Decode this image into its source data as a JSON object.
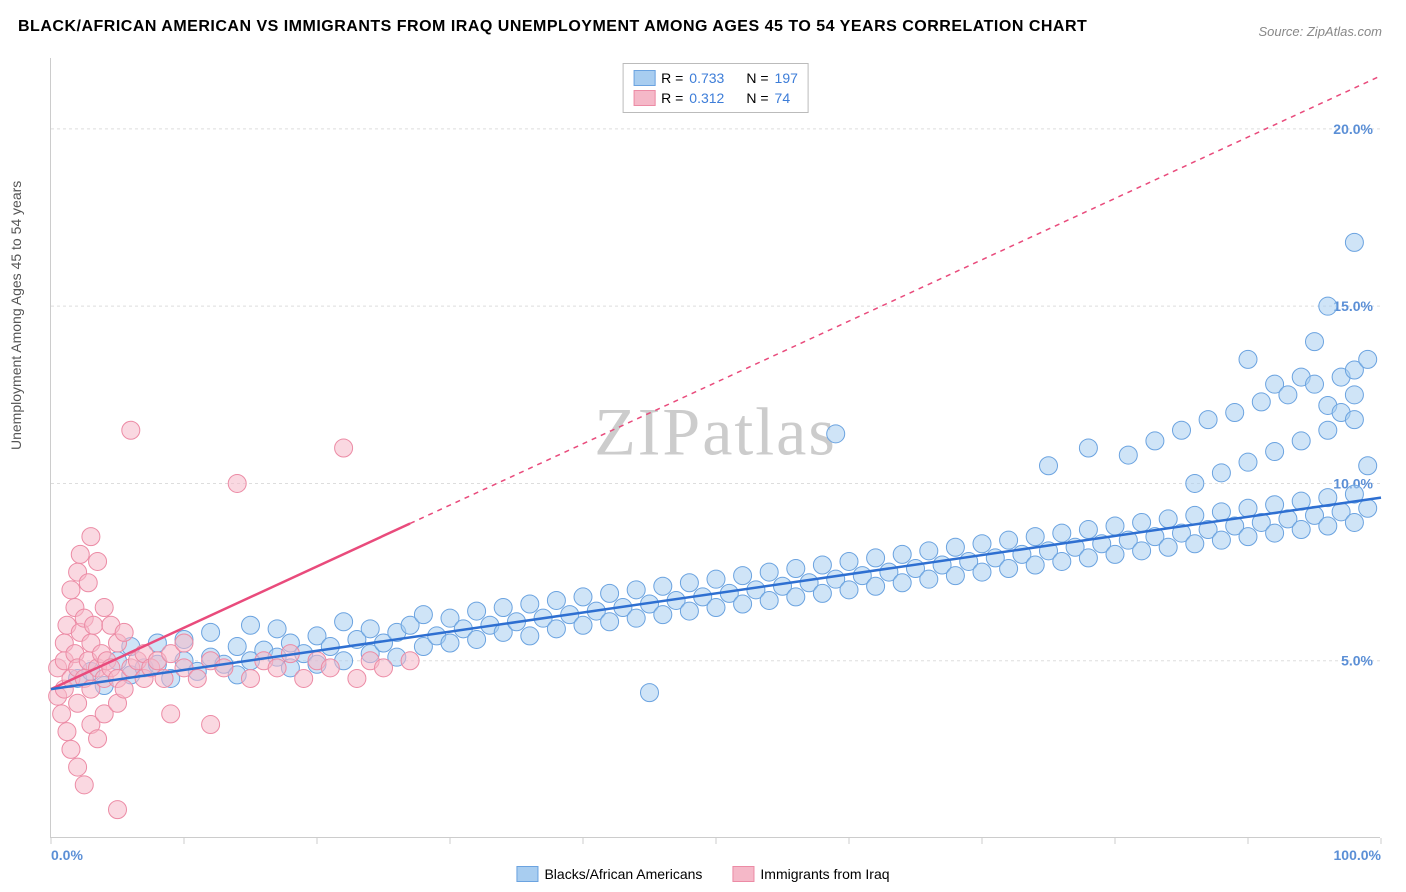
{
  "title": "BLACK/AFRICAN AMERICAN VS IMMIGRANTS FROM IRAQ UNEMPLOYMENT AMONG AGES 45 TO 54 YEARS CORRELATION CHART",
  "source": "Source: ZipAtlas.com",
  "watermark": "ZIPatlas",
  "y_axis_label": "Unemployment Among Ages 45 to 54 years",
  "chart": {
    "type": "scatter",
    "background_color": "#ffffff",
    "grid_color": "#dddddd",
    "axis_color": "#cccccc",
    "xlim": [
      0,
      100
    ],
    "ylim": [
      0,
      22
    ],
    "x_ticks": [
      0,
      10,
      20,
      30,
      40,
      50,
      60,
      70,
      80,
      90,
      100
    ],
    "x_tick_labels_shown": {
      "0": "0.0%",
      "100": "100.0%"
    },
    "y_ticks": [
      5,
      10,
      15,
      20
    ],
    "y_tick_labels": {
      "5": "5.0%",
      "10": "10.0%",
      "15": "15.0%",
      "20": "20.0%"
    },
    "x_label_color": "#5b8fd6",
    "y_label_color": "#5b8fd6",
    "label_fontsize": 14,
    "title_fontsize": 16
  },
  "series_a": {
    "name": "Blacks/African Americans",
    "fill_color": "#a8cdf0",
    "stroke_color": "#6ba3e0",
    "line_color": "#2e6fd1",
    "marker_radius": 9,
    "marker_opacity": 0.55,
    "R": "0.733",
    "N": "197",
    "trend": {
      "x1": 0,
      "y1": 4.2,
      "x2": 100,
      "y2": 9.6,
      "solid_until_x": 100
    },
    "points": [
      [
        2,
        4.5
      ],
      [
        3,
        4.7
      ],
      [
        4,
        4.3
      ],
      [
        5,
        5.0
      ],
      [
        6,
        4.6
      ],
      [
        6,
        5.4
      ],
      [
        7,
        4.8
      ],
      [
        8,
        4.9
      ],
      [
        8,
        5.5
      ],
      [
        9,
        4.5
      ],
      [
        10,
        5.0
      ],
      [
        10,
        5.6
      ],
      [
        11,
        4.7
      ],
      [
        12,
        5.1
      ],
      [
        12,
        5.8
      ],
      [
        13,
        4.9
      ],
      [
        14,
        5.4
      ],
      [
        14,
        4.6
      ],
      [
        15,
        5.0
      ],
      [
        15,
        6.0
      ],
      [
        16,
        5.3
      ],
      [
        17,
        5.1
      ],
      [
        17,
        5.9
      ],
      [
        18,
        5.5
      ],
      [
        18,
        4.8
      ],
      [
        19,
        5.2
      ],
      [
        20,
        5.7
      ],
      [
        20,
        4.9
      ],
      [
        21,
        5.4
      ],
      [
        22,
        5.0
      ],
      [
        22,
        6.1
      ],
      [
        23,
        5.6
      ],
      [
        24,
        5.2
      ],
      [
        24,
        5.9
      ],
      [
        25,
        5.5
      ],
      [
        26,
        5.8
      ],
      [
        26,
        5.1
      ],
      [
        27,
        6.0
      ],
      [
        28,
        5.4
      ],
      [
        28,
        6.3
      ],
      [
        29,
        5.7
      ],
      [
        30,
        5.5
      ],
      [
        30,
        6.2
      ],
      [
        31,
        5.9
      ],
      [
        32,
        5.6
      ],
      [
        32,
        6.4
      ],
      [
        33,
        6.0
      ],
      [
        34,
        5.8
      ],
      [
        34,
        6.5
      ],
      [
        35,
        6.1
      ],
      [
        36,
        5.7
      ],
      [
        36,
        6.6
      ],
      [
        37,
        6.2
      ],
      [
        38,
        5.9
      ],
      [
        38,
        6.7
      ],
      [
        39,
        6.3
      ],
      [
        40,
        6.0
      ],
      [
        40,
        6.8
      ],
      [
        41,
        6.4
      ],
      [
        42,
        6.1
      ],
      [
        42,
        6.9
      ],
      [
        43,
        6.5
      ],
      [
        44,
        6.2
      ],
      [
        44,
        7.0
      ],
      [
        45,
        6.6
      ],
      [
        45,
        4.1
      ],
      [
        46,
        6.3
      ],
      [
        46,
        7.1
      ],
      [
        47,
        6.7
      ],
      [
        48,
        6.4
      ],
      [
        48,
        7.2
      ],
      [
        49,
        6.8
      ],
      [
        50,
        6.5
      ],
      [
        50,
        7.3
      ],
      [
        51,
        6.9
      ],
      [
        52,
        6.6
      ],
      [
        52,
        7.4
      ],
      [
        53,
        7.0
      ],
      [
        54,
        6.7
      ],
      [
        54,
        7.5
      ],
      [
        55,
        7.1
      ],
      [
        56,
        6.8
      ],
      [
        56,
        7.6
      ],
      [
        57,
        7.2
      ],
      [
        58,
        6.9
      ],
      [
        58,
        7.7
      ],
      [
        59,
        7.3
      ],
      [
        59,
        11.4
      ],
      [
        60,
        7.0
      ],
      [
        60,
        7.8
      ],
      [
        61,
        7.4
      ],
      [
        62,
        7.1
      ],
      [
        62,
        7.9
      ],
      [
        63,
        7.5
      ],
      [
        64,
        7.2
      ],
      [
        64,
        8.0
      ],
      [
        65,
        7.6
      ],
      [
        66,
        7.3
      ],
      [
        66,
        8.1
      ],
      [
        67,
        7.7
      ],
      [
        68,
        7.4
      ],
      [
        68,
        8.2
      ],
      [
        69,
        7.8
      ],
      [
        70,
        7.5
      ],
      [
        70,
        8.3
      ],
      [
        71,
        7.9
      ],
      [
        72,
        7.6
      ],
      [
        72,
        8.4
      ],
      [
        73,
        8.0
      ],
      [
        74,
        7.7
      ],
      [
        74,
        8.5
      ],
      [
        75,
        8.1
      ],
      [
        75,
        10.5
      ],
      [
        76,
        7.8
      ],
      [
        76,
        8.6
      ],
      [
        77,
        8.2
      ],
      [
        78,
        7.9
      ],
      [
        78,
        8.7
      ],
      [
        78,
        11.0
      ],
      [
        79,
        8.3
      ],
      [
        80,
        8.0
      ],
      [
        80,
        8.8
      ],
      [
        81,
        8.4
      ],
      [
        81,
        10.8
      ],
      [
        82,
        8.1
      ],
      [
        82,
        8.9
      ],
      [
        83,
        8.5
      ],
      [
        83,
        11.2
      ],
      [
        84,
        8.2
      ],
      [
        84,
        9.0
      ],
      [
        85,
        8.6
      ],
      [
        85,
        11.5
      ],
      [
        86,
        8.3
      ],
      [
        86,
        9.1
      ],
      [
        86,
        10.0
      ],
      [
        87,
        8.7
      ],
      [
        87,
        11.8
      ],
      [
        88,
        8.4
      ],
      [
        88,
        9.2
      ],
      [
        88,
        10.3
      ],
      [
        89,
        8.8
      ],
      [
        89,
        12.0
      ],
      [
        90,
        8.5
      ],
      [
        90,
        9.3
      ],
      [
        90,
        10.6
      ],
      [
        90,
        13.5
      ],
      [
        91,
        8.9
      ],
      [
        91,
        12.3
      ],
      [
        92,
        8.6
      ],
      [
        92,
        9.4
      ],
      [
        92,
        10.9
      ],
      [
        92,
        12.8
      ],
      [
        93,
        9.0
      ],
      [
        93,
        12.5
      ],
      [
        94,
        8.7
      ],
      [
        94,
        9.5
      ],
      [
        94,
        11.2
      ],
      [
        94,
        13.0
      ],
      [
        95,
        9.1
      ],
      [
        95,
        12.8
      ],
      [
        95,
        14.0
      ],
      [
        96,
        8.8
      ],
      [
        96,
        9.6
      ],
      [
        96,
        11.5
      ],
      [
        96,
        12.2
      ],
      [
        96,
        15.0
      ],
      [
        97,
        9.2
      ],
      [
        97,
        13.0
      ],
      [
        97,
        12.0
      ],
      [
        98,
        8.9
      ],
      [
        98,
        9.7
      ],
      [
        98,
        11.8
      ],
      [
        98,
        12.5
      ],
      [
        98,
        13.2
      ],
      [
        98,
        16.8
      ],
      [
        99,
        9.3
      ],
      [
        99,
        13.5
      ],
      [
        99,
        10.5
      ]
    ]
  },
  "series_b": {
    "name": "Immigrants from Iraq",
    "fill_color": "#f5b8c8",
    "stroke_color": "#ec8ba5",
    "line_color": "#e94b7c",
    "marker_radius": 9,
    "marker_opacity": 0.55,
    "R": "0.312",
    "N": "74",
    "trend": {
      "x1": 0,
      "y1": 4.2,
      "x2": 100,
      "y2": 21.5,
      "solid_until_x": 27
    },
    "points": [
      [
        0.5,
        4.0
      ],
      [
        0.5,
        4.8
      ],
      [
        0.8,
        3.5
      ],
      [
        1,
        5.0
      ],
      [
        1,
        4.2
      ],
      [
        1,
        5.5
      ],
      [
        1.2,
        6.0
      ],
      [
        1.2,
        3.0
      ],
      [
        1.5,
        4.5
      ],
      [
        1.5,
        7.0
      ],
      [
        1.5,
        2.5
      ],
      [
        1.8,
        5.2
      ],
      [
        1.8,
        6.5
      ],
      [
        2,
        4.8
      ],
      [
        2,
        7.5
      ],
      [
        2,
        2.0
      ],
      [
        2,
        3.8
      ],
      [
        2.2,
        5.8
      ],
      [
        2.2,
        8.0
      ],
      [
        2.5,
        4.5
      ],
      [
        2.5,
        6.2
      ],
      [
        2.5,
        1.5
      ],
      [
        2.8,
        5.0
      ],
      [
        2.8,
        7.2
      ],
      [
        3,
        4.2
      ],
      [
        3,
        5.5
      ],
      [
        3,
        8.5
      ],
      [
        3,
        3.2
      ],
      [
        3.2,
        6.0
      ],
      [
        3.5,
        4.8
      ],
      [
        3.5,
        7.8
      ],
      [
        3.5,
        2.8
      ],
      [
        3.8,
        5.2
      ],
      [
        4,
        4.5
      ],
      [
        4,
        6.5
      ],
      [
        4,
        3.5
      ],
      [
        4.2,
        5.0
      ],
      [
        4.5,
        4.8
      ],
      [
        4.5,
        6.0
      ],
      [
        5,
        4.5
      ],
      [
        5,
        5.5
      ],
      [
        5,
        3.8
      ],
      [
        5,
        0.8
      ],
      [
        5.5,
        4.2
      ],
      [
        5.5,
        5.8
      ],
      [
        6,
        4.8
      ],
      [
        6,
        11.5
      ],
      [
        6.5,
        5.0
      ],
      [
        7,
        4.5
      ],
      [
        7,
        5.2
      ],
      [
        7.5,
        4.8
      ],
      [
        8,
        5.0
      ],
      [
        8.5,
        4.5
      ],
      [
        9,
        5.2
      ],
      [
        9,
        3.5
      ],
      [
        10,
        4.8
      ],
      [
        10,
        5.5
      ],
      [
        11,
        4.5
      ],
      [
        12,
        5.0
      ],
      [
        12,
        3.2
      ],
      [
        13,
        4.8
      ],
      [
        14,
        10.0
      ],
      [
        15,
        4.5
      ],
      [
        16,
        5.0
      ],
      [
        17,
        4.8
      ],
      [
        18,
        5.2
      ],
      [
        19,
        4.5
      ],
      [
        20,
        5.0
      ],
      [
        21,
        4.8
      ],
      [
        22,
        11.0
      ],
      [
        23,
        4.5
      ],
      [
        24,
        5.0
      ],
      [
        25,
        4.8
      ],
      [
        27,
        5.0
      ]
    ]
  },
  "legend_top": {
    "r_label": "R =",
    "n_label": "N =",
    "value_color": "#3d7dd8"
  },
  "legend_bottom": {
    "items": [
      "Blacks/African Americans",
      "Immigrants from Iraq"
    ]
  }
}
